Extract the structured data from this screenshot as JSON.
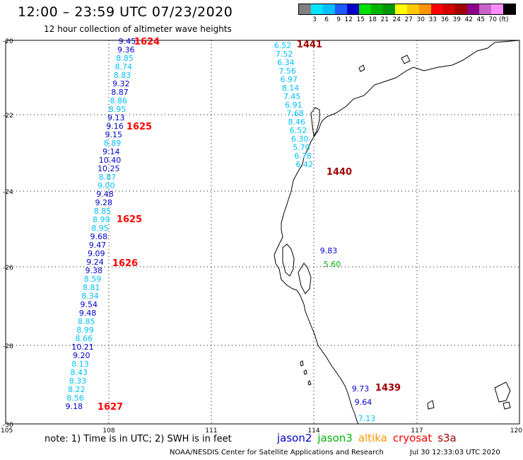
{
  "title": "12:00 – 23:59 UTC 07/23/2020",
  "subtitle": "12 hour collection of altimeter wave heights",
  "legend": {
    "colors": [
      "#808080",
      "#00e5ff",
      "#00bfff",
      "#1e5aff",
      "#0000c8",
      "#00e000",
      "#00b400",
      "#009600",
      "#ffff00",
      "#ffc800",
      "#ff9600",
      "#ff0000",
      "#d40000",
      "#a00000",
      "#8c008c",
      "#c864c8",
      "#ff8cff",
      "#000000"
    ],
    "labels": [
      "3",
      "6",
      "9",
      "12",
      "15",
      "18",
      "21",
      "24",
      "27",
      "30",
      "33",
      "36",
      "39",
      "42",
      "45",
      "70"
    ],
    "unit": "(ft)"
  },
  "axes": {
    "lat_labels": [
      "-20",
      "-22",
      "-24",
      "-26",
      "-28",
      "-30"
    ],
    "lon_labels": [
      "105",
      "108",
      "111",
      "114",
      "117",
      "120"
    ]
  },
  "colors": {
    "jason2": "#0000c8",
    "jason3": "#00b400",
    "altika": "#ff9600",
    "cryosat": "#ff0000",
    "s3a": "#a00000",
    "light": "#00bfff"
  },
  "tracks": [
    {
      "id": "left",
      "points": [
        {
          "v": "9.45",
          "c": "dark"
        },
        {
          "v": "9.36",
          "c": "dark"
        },
        {
          "v": "8.85",
          "c": "light"
        },
        {
          "v": "8.74",
          "c": "light"
        },
        {
          "v": "8.83",
          "c": "light"
        },
        {
          "v": "9.32",
          "c": "dark"
        },
        {
          "v": "8.87",
          "c": "dark"
        },
        {
          "v": "8.86",
          "c": "light"
        },
        {
          "v": "8.95",
          "c": "light"
        },
        {
          "v": "9.13",
          "c": "dark"
        },
        {
          "v": "9.16",
          "c": "dark"
        },
        {
          "v": "9.15",
          "c": "dark"
        },
        {
          "v": "8.89",
          "c": "light"
        },
        {
          "v": "9.14",
          "c": "dark"
        },
        {
          "v": "10.40",
          "c": "dark"
        },
        {
          "v": "10.25",
          "c": "dark"
        },
        {
          "v": "8.87",
          "c": "light"
        },
        {
          "v": "9.00",
          "c": "light"
        },
        {
          "v": "9.48",
          "c": "dark"
        },
        {
          "v": "9.28",
          "c": "dark"
        },
        {
          "v": "8.85",
          "c": "light"
        },
        {
          "v": "8.99",
          "c": "light"
        },
        {
          "v": "8.95",
          "c": "light"
        },
        {
          "v": "9.68",
          "c": "dark"
        },
        {
          "v": "9.47",
          "c": "dark"
        },
        {
          "v": "9.09",
          "c": "dark"
        },
        {
          "v": "9.24",
          "c": "dark"
        },
        {
          "v": "9.38",
          "c": "dark"
        },
        {
          "v": "8.59",
          "c": "light"
        },
        {
          "v": "8.81",
          "c": "light"
        },
        {
          "v": "8.34",
          "c": "light"
        },
        {
          "v": "9.54",
          "c": "dark"
        },
        {
          "v": "9.48",
          "c": "dark"
        },
        {
          "v": "8.85",
          "c": "light"
        },
        {
          "v": "8.99",
          "c": "light"
        },
        {
          "v": "8.66",
          "c": "light"
        },
        {
          "v": "10.21",
          "c": "dark"
        },
        {
          "v": "9.20",
          "c": "dark"
        },
        {
          "v": "8.13",
          "c": "light"
        },
        {
          "v": "8.43",
          "c": "light"
        },
        {
          "v": "8.33",
          "c": "light"
        },
        {
          "v": "8.22",
          "c": "light"
        },
        {
          "v": "8.56",
          "c": "light"
        },
        {
          "v": "9.18",
          "c": "dark"
        }
      ]
    },
    {
      "id": "right-top",
      "points": [
        {
          "v": "6.52",
          "c": "light"
        },
        {
          "v": "7.52",
          "c": "light"
        },
        {
          "v": "6.34",
          "c": "light"
        },
        {
          "v": "7.56",
          "c": "light"
        },
        {
          "v": "6.97",
          "c": "light"
        },
        {
          "v": "8.14",
          "c": "light"
        },
        {
          "v": "7.45",
          "c": "light"
        },
        {
          "v": "6.91",
          "c": "light"
        },
        {
          "v": "7.68",
          "c": "light"
        },
        {
          "v": "8.46",
          "c": "light"
        },
        {
          "v": "6.52",
          "c": "light"
        },
        {
          "v": "6.30",
          "c": "light"
        },
        {
          "v": "5.70",
          "c": "light"
        },
        {
          "v": "6.78",
          "c": "light"
        },
        {
          "v": "6.42",
          "c": "light"
        }
      ]
    },
    {
      "id": "mid",
      "points": [
        {
          "v": "9.83",
          "c": "dark"
        },
        {
          "v": "5.60",
          "c": "green"
        }
      ]
    },
    {
      "id": "bottom",
      "points": [
        {
          "v": "9.73",
          "c": "dark"
        },
        {
          "v": "9.64",
          "c": "dark"
        },
        {
          "v": "7.13",
          "c": "light"
        }
      ]
    }
  ],
  "times": [
    {
      "text": "1624",
      "c": "red"
    },
    {
      "text": "1625",
      "c": "red"
    },
    {
      "text": "1625",
      "c": "red"
    },
    {
      "text": "1626",
      "c": "red"
    },
    {
      "text": "1627",
      "c": "red"
    },
    {
      "text": "1441",
      "c": "maroon"
    },
    {
      "text": "1440",
      "c": "maroon"
    },
    {
      "text": "1439",
      "c": "maroon"
    }
  ],
  "footer": {
    "note": "note:  1) Time is in UTC;  2) SWH is in feet",
    "satellites": [
      "jason2",
      "jason3",
      "altika",
      "cryosat",
      "s3a"
    ],
    "credit": "NOAA/NESDIS Center for Satellite Applications and Research",
    "stamp": "Jul 30 12:33:03 UTC 2020"
  }
}
